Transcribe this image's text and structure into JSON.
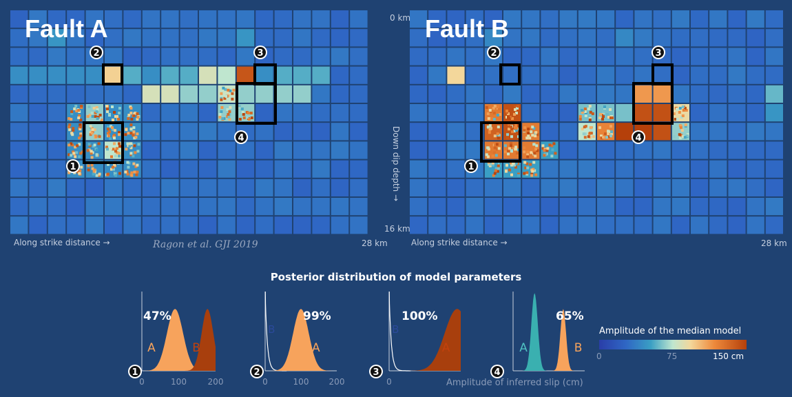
{
  "colors": {
    "background": "#1f4272",
    "cmap_low": "#2a3ea8",
    "cmap_mid": "#bfe6cf",
    "cmap_high": "#b5400a",
    "lightfill": "#f7a35c",
    "darkfill": "#a83f0d",
    "tealfill": "#3ab0b0"
  },
  "faults": [
    {
      "title": "Fault A",
      "depth_top": "0 km",
      "depth_bottom": "16 km",
      "depth_axis": "Down dip depth →",
      "xlabel": "Along strike distance →",
      "xmax_label": "28 km",
      "citation": "Ragon et al. GJI 2019",
      "badges": [
        "1",
        "2",
        "3",
        "4"
      ]
    },
    {
      "title": "Fault B",
      "xlabel": "Along strike distance →",
      "xmax_label": "28 km",
      "badges": [
        "1",
        "2",
        "3",
        "4"
      ]
    }
  ],
  "chart_data": [
    {
      "type": "heatmap",
      "title": "Fault A",
      "xlabel": "Along strike distance",
      "ylabel": "Down dip depth",
      "x_range_km": [
        0,
        28
      ],
      "y_range_km": [
        0,
        16
      ],
      "grid": [
        19,
        12
      ],
      "units": "cm",
      "patches": [
        {
          "label": "1",
          "slip_cm": 120
        },
        {
          "label": "2",
          "slip_cm": 95
        },
        {
          "label": "3",
          "slip_cm": 140
        },
        {
          "label": "4",
          "slip_cm": 70
        },
        {
          "label": "shallow band",
          "slip_cm": 60
        }
      ]
    },
    {
      "type": "heatmap",
      "title": "Fault B",
      "xlabel": "Along strike distance",
      "ylabel": "Down dip depth",
      "x_range_km": [
        0,
        28
      ],
      "y_range_km": [
        0,
        16
      ],
      "grid": [
        20,
        12
      ],
      "units": "cm",
      "patches": [
        {
          "label": "1",
          "slip_cm": 130
        },
        {
          "label": "2",
          "slip_cm": 10
        },
        {
          "label": "3",
          "slip_cm": 20
        },
        {
          "label": "4",
          "slip_cm": 150
        }
      ]
    },
    {
      "type": "area",
      "title": "Posterior distribution of model parameters",
      "xlabel": "Amplitude of inferred slip (cm)",
      "panels": [
        {
          "label": "1",
          "prob": "47%",
          "ticks": [
            "0",
            "100",
            "200"
          ],
          "xlim": [
            0,
            200
          ],
          "series": [
            {
              "name": "A",
              "mean": 90,
              "sd": 22,
              "style": "light"
            },
            {
              "name": "B",
              "mean": 178,
              "sd": 16,
              "style": "dark"
            }
          ]
        },
        {
          "label": "2",
          "prob": "99%",
          "ticks": [
            "0",
            "100",
            "200"
          ],
          "xlim": [
            0,
            200
          ],
          "series": [
            {
              "name": "B",
              "mean": 0,
              "sd": 6,
              "style": "line"
            },
            {
              "name": "A",
              "mean": 100,
              "sd": 22,
              "style": "light"
            }
          ]
        },
        {
          "label": "3",
          "prob": "100%",
          "ticks": [
            "0"
          ],
          "xlim": [
            0,
            200
          ],
          "series": [
            {
              "name": "B",
              "mean": 0,
              "sd": 6,
              "style": "line"
            },
            {
              "name": "A",
              "mean": 190,
              "sd": 35,
              "style": "dark"
            }
          ]
        },
        {
          "label": "4",
          "prob": "65%",
          "ticks": [],
          "xlim": [
            0,
            200
          ],
          "series": [
            {
              "name": "A",
              "mean": 60,
              "sd": 9,
              "style": "teal"
            },
            {
              "name": "B",
              "mean": 140,
              "sd": 8,
              "style": "light"
            }
          ]
        }
      ]
    },
    {
      "type": "colorbar",
      "title": "Amplitude of the median model",
      "ticks": [
        "0",
        "75",
        "150 cm"
      ],
      "range": [
        0,
        150
      ]
    }
  ]
}
